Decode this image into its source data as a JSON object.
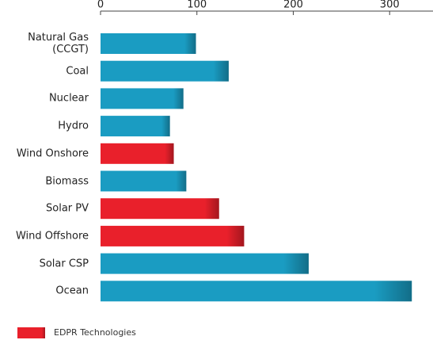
{
  "chart_data": {
    "type": "bar",
    "orientation": "horizontal",
    "categories": [
      "Natural Gas\n(CCGT)",
      "Coal",
      "Nuclear",
      "Hydro",
      "Wind Onshore",
      "Biomass",
      "Solar PV",
      "Wind Offshore",
      "Solar CSP",
      "Ocean"
    ],
    "values": [
      99,
      133,
      86,
      72,
      76,
      89,
      123,
      149,
      216,
      323
    ],
    "colors": [
      "#1a9cc2",
      "#1a9cc2",
      "#1a9cc2",
      "#1a9cc2",
      "#e9202b",
      "#1a9cc2",
      "#e9202b",
      "#e9202b",
      "#1a9cc2",
      "#1a9cc2"
    ],
    "xlim": [
      0,
      345
    ],
    "xticks": [
      0,
      100,
      200,
      300
    ],
    "legend": {
      "label": "EDPR Technologies",
      "color": "#e9202b"
    }
  }
}
